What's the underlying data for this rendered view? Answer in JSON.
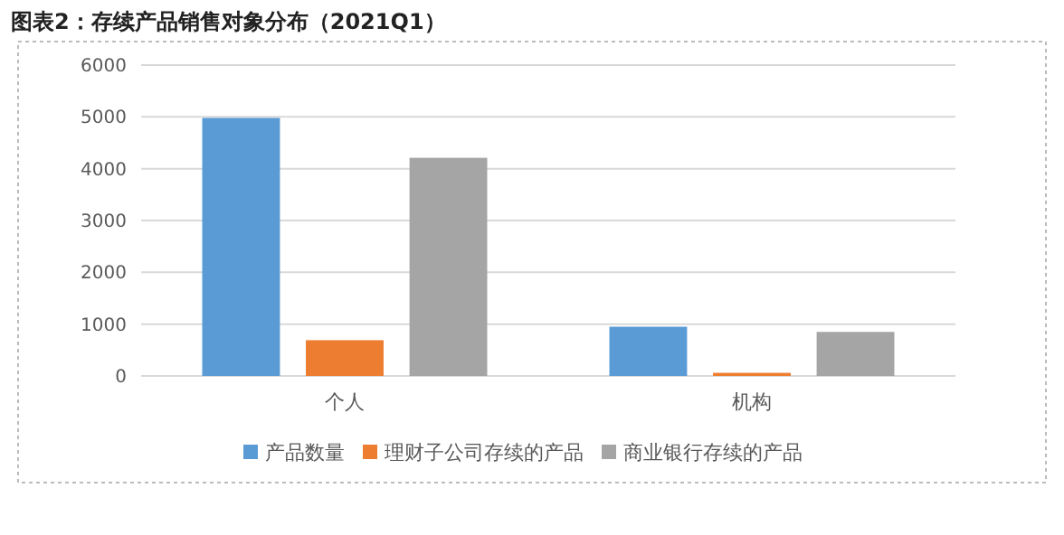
{
  "chart_data": {
    "type": "bar",
    "title": "图表2：存续产品销售对象分布（2021Q1）",
    "categories": [
      "个人",
      "机构"
    ],
    "series": [
      {
        "name": "产品数量",
        "color": "#5b9bd5",
        "values": [
          4980,
          950
        ]
      },
      {
        "name": "理财子公司存续的产品",
        "color": "#ed7d31",
        "values": [
          690,
          60
        ]
      },
      {
        "name": "商业银行存续的产品",
        "color": "#a5a5a5",
        "values": [
          4210,
          850
        ]
      }
    ],
    "ylim": [
      0,
      6000
    ],
    "yticks": [
      0,
      1000,
      2000,
      3000,
      4000,
      5000,
      6000
    ],
    "grid": "y",
    "legend": "bottom"
  }
}
